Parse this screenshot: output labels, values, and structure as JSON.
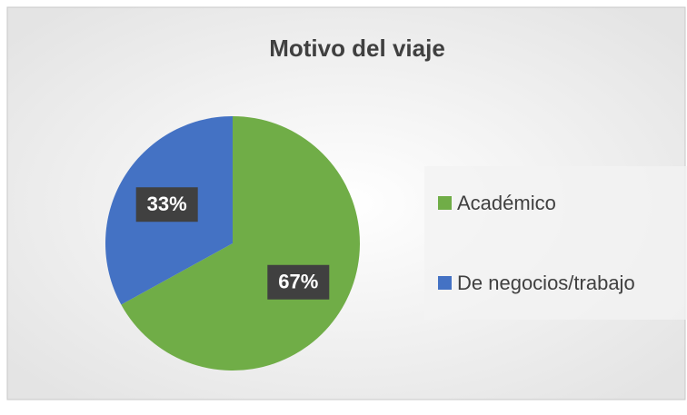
{
  "chart_data": {
    "type": "pie",
    "title": "Motivo del viaje",
    "categories": [
      "Académico",
      "De negocios/trabajo"
    ],
    "values": [
      67,
      33
    ],
    "value_labels": [
      "67%",
      "33%"
    ],
    "colors": [
      "#70ad47",
      "#4472c4"
    ],
    "legend": "right"
  }
}
